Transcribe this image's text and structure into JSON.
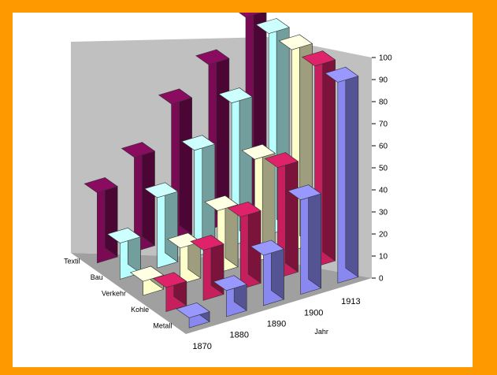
{
  "chart_data": {
    "type": "bar",
    "variant": "3d-column",
    "title": "",
    "x_axis_label": "Jahr",
    "x_categories": [
      "1870",
      "1880",
      "1890",
      "1900",
      "1913"
    ],
    "depth_categories": [
      "Textil",
      "Bau",
      "Verkehr",
      "Kohle",
      "Metall"
    ],
    "y_ticks": [
      "0",
      "10",
      "20",
      "30",
      "40",
      "50",
      "60",
      "70",
      "80",
      "90",
      "100"
    ],
    "ylim": [
      0,
      100
    ],
    "series": [
      {
        "name": "Textil",
        "color": "#7B0A55",
        "values": [
          35,
          47,
          68,
          82,
          100
        ]
      },
      {
        "name": "Bau",
        "color": "#B8FFFF",
        "values": [
          18,
          35,
          53,
          71,
          100
        ]
      },
      {
        "name": "Verkehr",
        "color": "#FFFFCC",
        "values": [
          7,
          18,
          31,
          51,
          100
        ]
      },
      {
        "name": "Kohle",
        "color": "#C71E5E",
        "values": [
          12,
          25,
          36,
          55,
          100
        ]
      },
      {
        "name": "Metall",
        "color": "#8888F0",
        "values": [
          5,
          13,
          25,
          47,
          100
        ]
      }
    ]
  }
}
